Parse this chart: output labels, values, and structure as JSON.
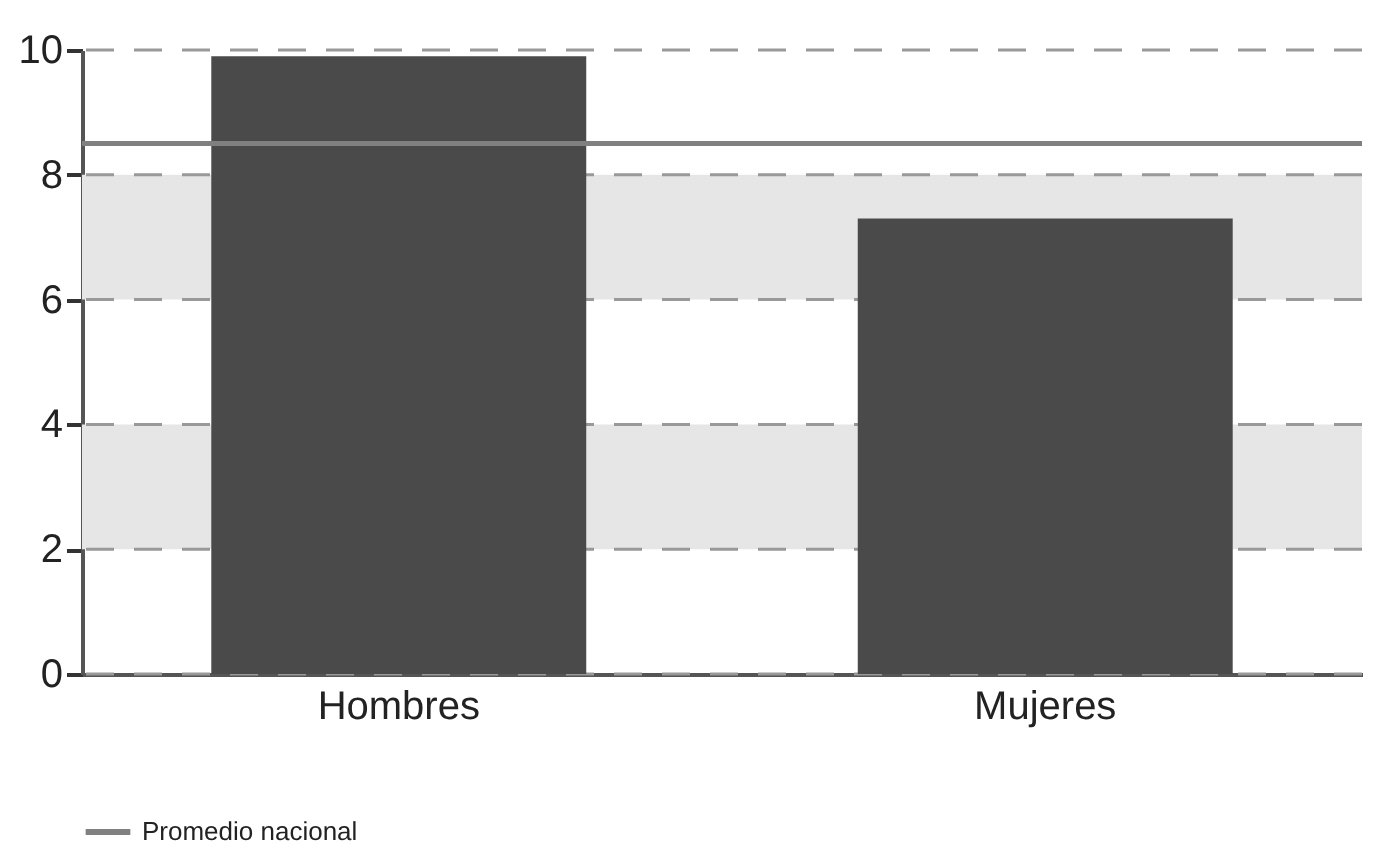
{
  "chart_data": {
    "type": "bar",
    "categories": [
      "Hombres",
      "Mujeres"
    ],
    "values": [
      9.9,
      7.3
    ],
    "color": "#4a4a4a",
    "ylim": [
      0,
      10
    ],
    "yticks": [
      0,
      2,
      4,
      6,
      8,
      10
    ],
    "grid": "y",
    "line_style": "dashed",
    "legend": "bottom left",
    "ref_lines": [
      {
        "axis": "y",
        "value": 8.5,
        "label": "Promedio nacional",
        "color": "#808080"
      }
    ],
    "bands": [
      {
        "axis": "y",
        "from": 2,
        "to": 4,
        "color": "#e6e6e6"
      },
      {
        "axis": "y",
        "from": 6,
        "to": 8,
        "color": "#e6e6e6"
      }
    ]
  }
}
